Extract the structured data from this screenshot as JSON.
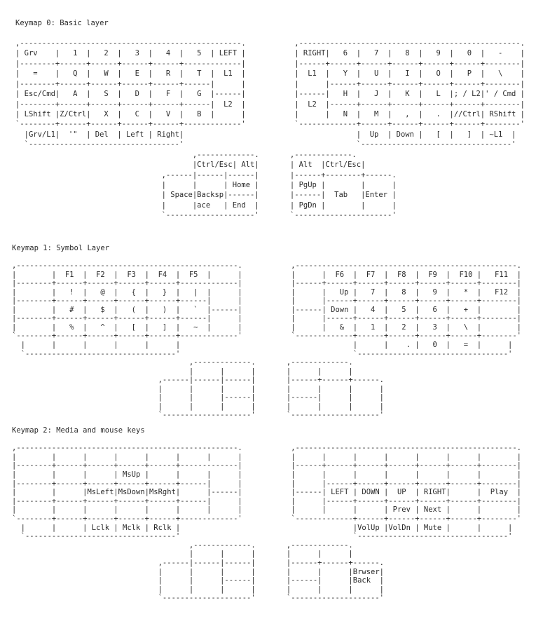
{
  "sections": [
    {
      "title": "Keymap 0: Basic layer",
      "lines": [
        ",--------------------------------------------------.           ,--------------------------------------------------.",
        "| Grv    |   1  |   2  |   3  |   4  |   5  | LEFT |           | RIGHT|   6  |   7  |   8  |   9  |   0  |   -    |",
        "|--------+------+------+------+------+-------------|           |------+------+------+------+------+------+--------|",
        "|   =    |   Q  |   W  |   E  |   R  |   T  |  L1  |           |  L1  |   Y  |   U  |   I  |   O  |   P  |   \\    |",
        "|--------+------+------+------+------+------|      |           |      |------+------+------+------+------+--------|",
        "| Esc/Cmd|   A  |   S  |   D  |   F  |   G  |------|           |------|   H  |   J  |   K  |   L  |; / L2|' / Cmd |",
        "|--------+------+------+------+------+------|  L2  |           |  L2  |------+------+------+------+------+--------|",
        "| LShift |Z/Ctrl|   X  |   C  |   V  |   B  |      |           |      |   N  |   M  |   ,  |   .  |//Ctrl| RShift |",
        "`--------+------+------+------+------+-------------'           `-------------+------+------+------+------+--------'",
        "  |Grv/L1|  '\"  | Del  | Left | Right|                                       |  Up  | Down |   [  |   ]  | ~L1  |",
        "  `----------------------------------'                                       `----------------------------------'",
        "                                        ,-------------.       ,-------------.",
        "                                        |Ctrl/Esc| Alt|       | Alt  |Ctrl/Esc|",
        "                                 ,------|------|------|       |------+--------+------.",
        "                                 |      |      | Home |       | PgUp |        |      |",
        "                                 | Space|Backsp|------|       |------|  Tab   |Enter |",
        "                                 |      |ace   | End  |       | PgDn |        |      |",
        "                                 `--------------------'       `----------------------'"
      ]
    },
    {
      "title": "Keymap 1: Symbol Layer",
      "lines": [
        ",--------------------------------------------------.           ,--------------------------------------------------.",
        "|        |  F1  |  F2  |  F3  |  F4  |  F5  |      |           |      |  F6  |  F7  |  F8  |  F9  |  F10 |   F11  |",
        "|--------+------+------+------+------+-------------|           |------+------+------+------+------+------+--------|",
        "|        |   !  |   @  |   {  |   }  |   |  |      |           |      |   Up |   7  |   8  |   9  |   *  |   F12  |",
        "|--------+------+------+------+------+------|      |           |      |------+------+------+------+------+--------|",
        "|        |   #  |   $  |   (  |   )  |   `  |------|           |------| Down |   4  |   5  |   6  |   +  |        |",
        "|--------+------+------+------+------+------|      |           |      |------+------+------+------+------+--------|",
        "|        |   %  |   ^  |   [  |   ]  |   ~  |      |           |      |   &  |   1  |   2  |   3  |   \\  |        |",
        "`--------+------+------+------+------+-------------'           `-------------+------+------+------+------+--------'",
        "  |      |      |      |      |      |                                       |      |    . |   0  |   =  |      |",
        "  `----------------------------------'                                       `----------------------------------'",
        "                                        ,-------------.       ,-------------.",
        "                                        |      |      |       |      |      |",
        "                                 ,------|------|------|       |------+------+------.",
        "                                 |      |      |      |       |      |      |      |",
        "                                 |      |      |------|       |------|      |      |",
        "                                 |      |      |      |       |      |      |      |",
        "                                 `--------------------'       `--------------------'"
      ]
    },
    {
      "title": "Keymap 2: Media and mouse keys",
      "lines": [
        ",--------------------------------------------------.           ,--------------------------------------------------.",
        "|        |      |      |      |      |      |      |           |      |      |      |      |      |      |        |",
        "|--------+------+------+------+------+-------------|           |------+------+------+------+------+------+--------|",
        "|        |      |      | MsUp |      |      |      |           |      |      |      |      |      |      |        |",
        "|--------+------+------+------+------+------|      |           |      |------+------+------+------+------+--------|",
        "|        |      |MsLeft|MsDown|MsRght|      |------|           |------| LEFT | DOWN |  UP  | RIGHT|      |  Play  |",
        "|--------+------+------+------+------+------|      |           |      |------+------+------+------+------+--------|",
        "|        |      |      |      |      |      |      |           |      |      |      | Prev | Next |      |        |",
        "`--------+------+------+------+------+-------------'           `-------------+------+------+------+------+--------'",
        "  |      |      | Lclk | Mclk | Rclk |                                       |VolUp |VolDn | Mute |      |      |",
        "  `----------------------------------'                                       `----------------------------------'",
        "                                        ,-------------.       ,-------------.",
        "                                        |      |      |       |      |      |",
        "                                 ,------|------|------|       |------+------+------.",
        "                                 |      |      |      |       |      |      |Brwser|",
        "                                 |      |      |------|       |------|      |Back  |",
        "                                 |      |      |      |       |      |      |      |",
        "                                 `--------------------'       `--------------------'"
      ]
    }
  ]
}
